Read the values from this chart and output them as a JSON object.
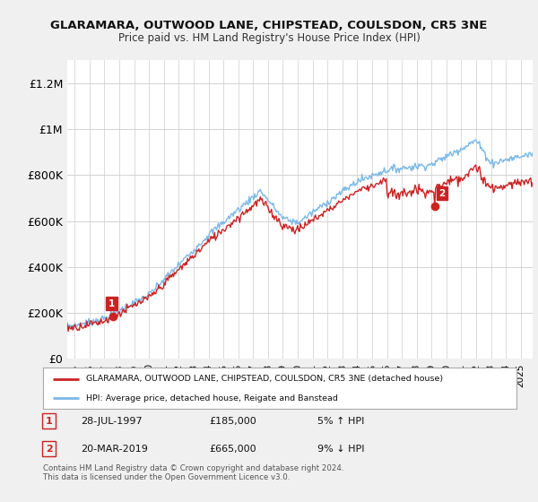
{
  "title1": "GLARAMARA, OUTWOOD LANE, CHIPSTEAD, COULSDON, CR5 3NE",
  "title2": "Price paid vs. HM Land Registry's House Price Index (HPI)",
  "legend_line1": "GLARAMARA, OUTWOOD LANE, CHIPSTEAD, COULSDON, CR5 3NE (detached house)",
  "legend_line2": "HPI: Average price, detached house, Reigate and Banstead",
  "sale1_date": "28-JUL-1997",
  "sale1_price": "£185,000",
  "sale1_hpi": "5% ↑ HPI",
  "sale1_x": 1997.58,
  "sale1_y": 185000,
  "sale2_date": "20-MAR-2019",
  "sale2_price": "£665,000",
  "sale2_hpi": "9% ↓ HPI",
  "sale2_x": 2019.21,
  "sale2_y": 665000,
  "footer": "Contains HM Land Registry data © Crown copyright and database right 2024.\nThis data is licensed under the Open Government Licence v3.0.",
  "hpi_color": "#7ab8e8",
  "sale_color": "#cc2222",
  "background_color": "#f0f0f0",
  "plot_bg_color": "#ffffff",
  "ylim": [
    0,
    1300000
  ],
  "yticks": [
    0,
    200000,
    400000,
    600000,
    800000,
    1000000,
    1200000
  ],
  "xlim_start": 1994.5,
  "xlim_end": 2025.8
}
